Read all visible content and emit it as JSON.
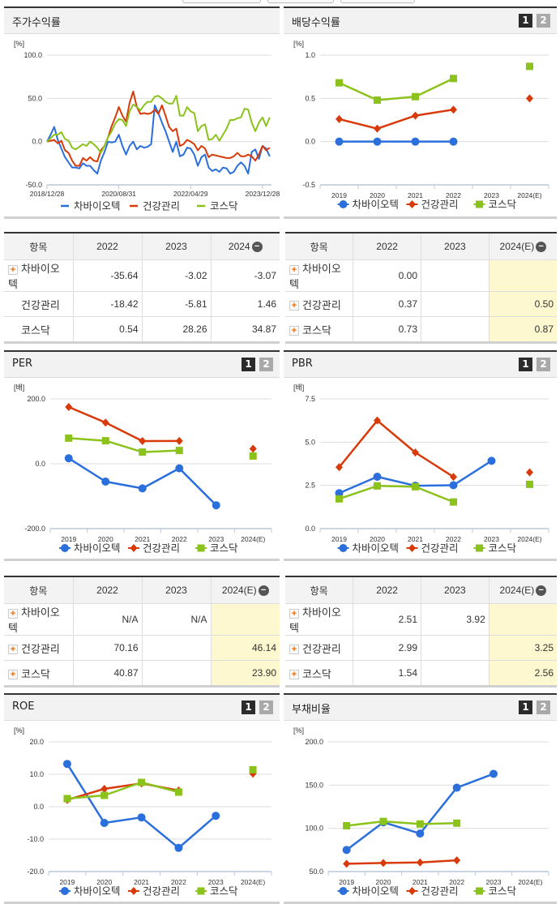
{
  "legend": [
    "차바이오텍",
    "건강관리",
    "코스닥"
  ],
  "colors": {
    "차바이오텍": "#2a6fdb",
    "건강관리": "#d83a0a",
    "코스닥": "#8bc21b"
  },
  "markers": {
    "차바이오텍": "circle",
    "건강관리": "diamond",
    "코스닥": "square"
  },
  "page_buttons": [
    "1",
    "2"
  ],
  "chart_data": [
    {
      "id": "stock_return",
      "type": "line",
      "title": "주가수익률",
      "ylabel": "[%]",
      "ylim": [
        -50,
        100
      ],
      "yticks": [
        100,
        50,
        0,
        -50
      ],
      "grid": true,
      "legend": "bottom",
      "markers": false,
      "x": [
        "2018-12",
        "2019-01",
        "2019-02",
        "2019-03",
        "2019-04",
        "2019-05",
        "2019-06",
        "2019-07",
        "2019-08",
        "2019-09",
        "2019-10",
        "2019-11",
        "2019-12",
        "2020-01",
        "2020-02",
        "2020-03",
        "2020-04",
        "2020-05",
        "2020-06",
        "2020-07",
        "2020-08",
        "2020-09",
        "2020-10",
        "2020-11",
        "2020-12",
        "2021-01",
        "2021-02",
        "2021-03",
        "2021-04",
        "2021-05",
        "2021-06",
        "2021-07",
        "2021-08",
        "2021-09",
        "2021-10",
        "2021-11",
        "2021-12",
        "2022-01",
        "2022-02",
        "2022-03",
        "2022-04",
        "2022-05",
        "2022-06",
        "2022-07",
        "2022-08",
        "2022-09",
        "2022-10",
        "2022-11",
        "2022-12",
        "2023-01",
        "2023-02",
        "2023-03",
        "2023-04",
        "2023-05",
        "2023-06",
        "2023-07",
        "2023-08",
        "2023-09",
        "2023-10",
        "2023-11",
        "2023-12",
        "2024-01",
        "2024-02"
      ],
      "xticks": [
        {
          "label": "2018/12/28",
          "x": "2018-12"
        },
        {
          "label": "2020/08/31",
          "x": "2020-08"
        },
        {
          "label": "2022/04/29",
          "x": "2022-04"
        },
        {
          "label": "2023/12/28",
          "x": "2023-12"
        }
      ],
      "series": [
        {
          "name": "차바이오텍",
          "values": [
            0,
            8,
            17,
            2,
            -8,
            -18,
            -24,
            -30,
            -30,
            -31,
            -25,
            -28,
            -28,
            -33,
            -37,
            -22,
            -12,
            0,
            -1,
            0,
            8,
            -5,
            -15,
            -5,
            0,
            -9,
            -5,
            -7,
            -6,
            -3,
            42,
            33,
            22,
            12,
            0,
            -12,
            0,
            -17,
            -15,
            -7,
            -8,
            -15,
            -28,
            -18,
            -15,
            -30,
            -34,
            -32,
            -35,
            -30,
            -31,
            -37,
            -35,
            -28,
            -24,
            -28,
            -37,
            -12,
            -9,
            -20,
            -5,
            -8,
            -17
          ]
        },
        {
          "name": "건강관리",
          "values": [
            0,
            1,
            2,
            -2,
            1,
            -10,
            -13,
            -22,
            -28,
            -28,
            -19,
            -22,
            -18,
            -22,
            -23,
            -10,
            -5,
            5,
            18,
            28,
            40,
            30,
            23,
            45,
            58,
            40,
            32,
            33,
            32,
            33,
            37,
            32,
            42,
            30,
            17,
            12,
            15,
            -5,
            -3,
            2,
            0,
            -3,
            -10,
            -5,
            -8,
            -18,
            -15,
            -16,
            -17,
            -18,
            -19,
            -19,
            -17,
            -13,
            -17,
            -17,
            -15,
            -17,
            -22,
            -15,
            -5,
            -10,
            -7
          ]
        },
        {
          "name": "코스닥",
          "values": [
            0,
            4,
            8,
            8,
            11,
            3,
            1,
            -7,
            -9,
            -6,
            -3,
            -5,
            0,
            -3,
            -7,
            -13,
            -5,
            5,
            12,
            21,
            26,
            25,
            18,
            35,
            43,
            40,
            36,
            42,
            46,
            46,
            52,
            53,
            50,
            46,
            44,
            44,
            53,
            30,
            30,
            40,
            35,
            33,
            12,
            18,
            20,
            2,
            3,
            8,
            1,
            8,
            15,
            25,
            25,
            27,
            28,
            38,
            37,
            22,
            12,
            22,
            28,
            18,
            28
          ]
        }
      ]
    },
    {
      "id": "dividend",
      "type": "line",
      "title": "배당수익률",
      "ylabel": "[%]",
      "ylim": [
        -0.5,
        1.0
      ],
      "yticks": [
        1.0,
        0.5,
        0.0,
        -0.5
      ],
      "grid": true,
      "legend": "bottom",
      "categories": [
        "2019",
        "2020",
        "2021",
        "2022",
        "2023",
        "2024(E)"
      ],
      "series": [
        {
          "name": "차바이오텍",
          "values": [
            0.0,
            0.0,
            0.0,
            0.0,
            null,
            null
          ]
        },
        {
          "name": "건강관리",
          "values": [
            0.26,
            0.15,
            0.3,
            0.37,
            null,
            0.5
          ]
        },
        {
          "name": "코스닥",
          "values": [
            0.68,
            0.48,
            0.52,
            0.73,
            null,
            0.87
          ]
        }
      ]
    },
    {
      "id": "per",
      "type": "line",
      "title": "PER",
      "ylabel": "[배]",
      "ylim": [
        -200,
        200
      ],
      "yticks": [
        200,
        0,
        -200
      ],
      "grid": true,
      "legend": "bottom",
      "categories": [
        "2019",
        "2020",
        "2021",
        "2022",
        "2023",
        "2024(E)"
      ],
      "series": [
        {
          "name": "차바이오텍",
          "values": [
            17,
            -55,
            -76,
            -14,
            -128,
            null
          ]
        },
        {
          "name": "건강관리",
          "values": [
            175,
            127,
            70,
            70.16,
            null,
            46.14
          ]
        },
        {
          "name": "코스닥",
          "values": [
            79,
            71,
            36,
            40.87,
            null,
            23.9
          ]
        }
      ]
    },
    {
      "id": "pbr",
      "type": "line",
      "title": "PBR",
      "ylabel": "[배]",
      "ylim": [
        0,
        7.5
      ],
      "yticks": [
        7.5,
        5.0,
        2.5,
        0.0
      ],
      "grid": true,
      "legend": "bottom",
      "categories": [
        "2019",
        "2020",
        "2021",
        "2022",
        "2023",
        "2024(E)"
      ],
      "series": [
        {
          "name": "차바이오텍",
          "values": [
            2.05,
            3.0,
            2.48,
            2.51,
            3.92,
            null
          ]
        },
        {
          "name": "건강관리",
          "values": [
            3.55,
            6.25,
            4.4,
            2.99,
            null,
            3.25
          ]
        },
        {
          "name": "코스닥",
          "values": [
            1.72,
            2.47,
            2.42,
            1.54,
            null,
            2.56
          ]
        }
      ]
    },
    {
      "id": "roe",
      "type": "line",
      "title": "ROE",
      "ylabel": "[%]",
      "ylim": [
        -20,
        20
      ],
      "yticks": [
        20,
        10,
        0,
        -10,
        -20
      ],
      "grid": true,
      "legend": "bottom",
      "categories": [
        "2019",
        "2020",
        "2021",
        "2022",
        "2023",
        "2024(E)"
      ],
      "series": [
        {
          "name": "차바이오텍",
          "values": [
            13.2,
            -5.0,
            -3.3,
            -12.7,
            -2.8,
            null
          ]
        },
        {
          "name": "건강관리",
          "values": [
            2.1,
            5.5,
            7.2,
            5.0,
            null,
            10.2
          ]
        },
        {
          "name": "코스닥",
          "values": [
            2.5,
            3.5,
            7.5,
            4.5,
            null,
            11.4
          ]
        }
      ]
    },
    {
      "id": "debt_ratio",
      "type": "line",
      "title": "부채비율",
      "ylabel": "[%]",
      "ylim": [
        50,
        200
      ],
      "yticks": [
        200,
        150,
        100,
        50
      ],
      "grid": true,
      "legend": "bottom",
      "categories": [
        "2019",
        "2020",
        "2021",
        "2022",
        "2023",
        "2024(E)"
      ],
      "series": [
        {
          "name": "차바이오텍",
          "values": [
            75,
            107,
            94,
            147,
            163,
            null
          ]
        },
        {
          "name": "건강관리",
          "values": [
            59,
            60,
            60.5,
            63,
            null,
            null
          ]
        },
        {
          "name": "코스닥",
          "values": [
            103,
            108,
            105,
            106,
            null,
            null
          ]
        }
      ]
    }
  ],
  "tables": [
    {
      "id": "stock_return_table",
      "headers": [
        "항목",
        "2022",
        "2023",
        "2024"
      ],
      "highlight_last": false,
      "rows": [
        {
          "name": "차바이오텍",
          "expand": true,
          "cells": [
            "-35.64",
            "-3.02",
            "-3.07"
          ]
        },
        {
          "name": "건강관리",
          "expand": false,
          "cells": [
            "-18.42",
            "-5.81",
            "1.46"
          ]
        },
        {
          "name": "코스닥",
          "expand": false,
          "cells": [
            "0.54",
            "28.26",
            "34.87"
          ]
        }
      ]
    },
    {
      "id": "dividend_table",
      "headers": [
        "항목",
        "2022",
        "2023",
        "2024(E)"
      ],
      "highlight_last": true,
      "rows": [
        {
          "name": "차바이오텍",
          "expand": true,
          "cells": [
            "0.00",
            "",
            ""
          ]
        },
        {
          "name": "건강관리",
          "expand": true,
          "cells": [
            "0.37",
            "",
            "0.50"
          ]
        },
        {
          "name": "코스닥",
          "expand": true,
          "cells": [
            "0.73",
            "",
            "0.87"
          ]
        }
      ]
    },
    {
      "id": "per_table",
      "headers": [
        "항목",
        "2022",
        "2023",
        "2024(E)"
      ],
      "highlight_last": true,
      "rows": [
        {
          "name": "차바이오텍",
          "expand": true,
          "cells": [
            "N/A",
            "N/A",
            ""
          ]
        },
        {
          "name": "건강관리",
          "expand": true,
          "cells": [
            "70.16",
            "",
            "46.14"
          ]
        },
        {
          "name": "코스닥",
          "expand": true,
          "cells": [
            "40.87",
            "",
            "23.90"
          ]
        }
      ]
    },
    {
      "id": "pbr_table",
      "headers": [
        "항목",
        "2022",
        "2023",
        "2024(E)"
      ],
      "highlight_last": true,
      "rows": [
        {
          "name": "차바이오텍",
          "expand": true,
          "cells": [
            "2.51",
            "3.92",
            ""
          ]
        },
        {
          "name": "건강관리",
          "expand": true,
          "cells": [
            "2.99",
            "",
            "3.25"
          ]
        },
        {
          "name": "코스닥",
          "expand": true,
          "cells": [
            "1.54",
            "",
            "2.56"
          ]
        }
      ]
    }
  ]
}
